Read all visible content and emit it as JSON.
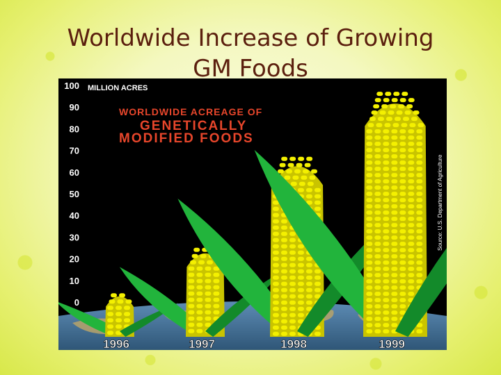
{
  "slide": {
    "title_line1": "Worldwide Increase of Growing",
    "title_line2": "GM Foods"
  },
  "chart_data": {
    "type": "bar",
    "title_line1": "WORLDWIDE ACREAGE OF",
    "title_line2": "GENETICALLY",
    "title_line3": "MODIFIED FOODS",
    "unit_label": "MILLION ACRES",
    "source": "Source: U.S. Department of Agriculture",
    "categories": [
      "1996",
      "1997",
      "1998",
      "1999"
    ],
    "values": [
      6,
      27,
      69,
      99
    ],
    "ylim": [
      0,
      100
    ],
    "yticks": [
      0,
      10,
      20,
      30,
      40,
      50,
      60,
      70,
      80,
      90,
      100
    ],
    "colors": {
      "background": "#000000",
      "corn": "#f4f000",
      "corn_stripe": "#c9c400",
      "leaf": "#22b43c",
      "leaf_dark": "#138a2a",
      "title_red": "#e8462b",
      "axis_text": "#ffffff",
      "globe": "#4f7fa8"
    }
  }
}
